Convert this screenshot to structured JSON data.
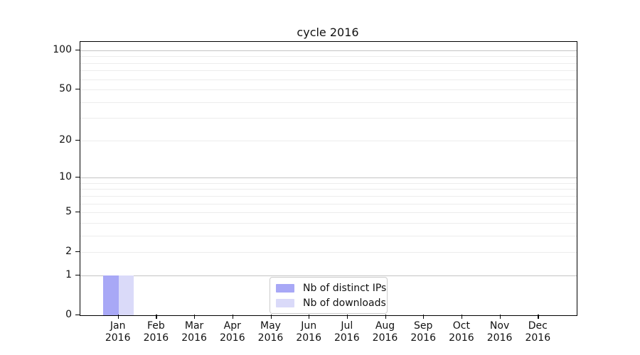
{
  "figure": {
    "background": "#ffffff"
  },
  "chart_data": {
    "type": "bar",
    "title": "cycle 2016",
    "categories": [
      "Jan 2016",
      "Feb 2016",
      "Mar 2016",
      "Apr 2016",
      "May 2016",
      "Jun 2016",
      "Jul 2016",
      "Aug 2016",
      "Sep 2016",
      "Oct 2016",
      "Nov 2016",
      "Dec 2016"
    ],
    "series": [
      {
        "name": "Nb of distinct IPs",
        "color": "#a8a8f6",
        "values": [
          1,
          0,
          0,
          0,
          0,
          0,
          0,
          0,
          0,
          0,
          0,
          0
        ]
      },
      {
        "name": "Nb of downloads",
        "color": "#dadaf9",
        "values": [
          1,
          0,
          0,
          0,
          0,
          0,
          0,
          0,
          0,
          0,
          0,
          0
        ]
      }
    ],
    "xlabel": "",
    "ylabel": "",
    "y_axis": {
      "scale": "log1p",
      "tick_values": [
        0,
        1,
        2,
        5,
        10,
        20,
        50,
        100
      ],
      "tick_labels": [
        "0",
        "1",
        "2",
        "5",
        "10",
        "20",
        "50",
        "100"
      ],
      "major_gridlines": [
        1,
        10,
        100
      ],
      "minor_gridlines": [
        2,
        3,
        4,
        5,
        6,
        7,
        8,
        9,
        20,
        30,
        40,
        50,
        60,
        70,
        80,
        90
      ],
      "ylim": [
        0,
        116
      ]
    },
    "grid": "horizontal",
    "legend": {
      "position": "lower center",
      "entries": [
        "Nb of distinct IPs",
        "Nb of downloads"
      ]
    }
  },
  "colors": {
    "axis": "#000000",
    "major_grid": "#c3c3c3",
    "minor_grid": "#ececec",
    "legend_border": "#cccccc",
    "text": "#111111"
  }
}
